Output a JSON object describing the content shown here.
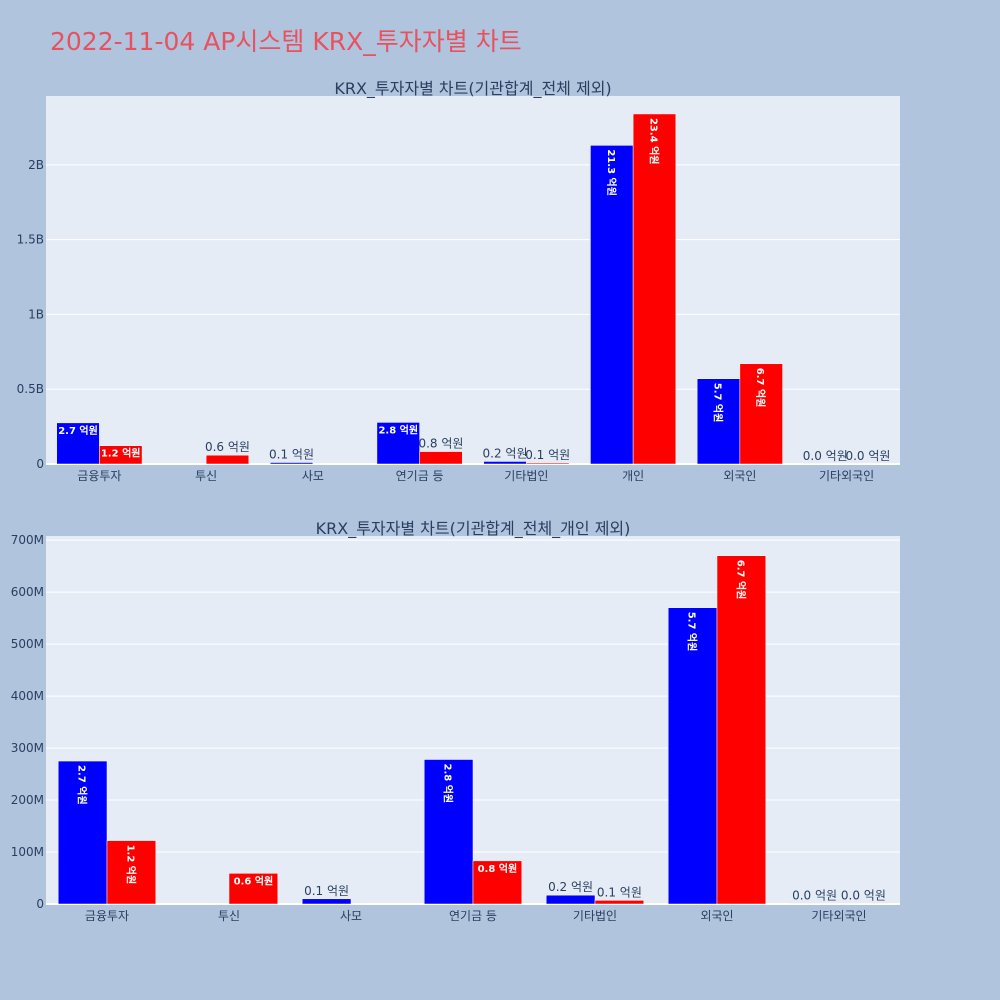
{
  "page_title": "2022-11-04 AP시스템 KRX_투자자별 차트",
  "colors": {
    "buy": "#0000ff",
    "sell": "#ff0000",
    "plot_bg": "#e5ecf6",
    "page_bg": "#b0c4de",
    "title": "#e8525f"
  },
  "chart_data": [
    {
      "type": "bar",
      "title": "KRX_투자자별 차트(기관합계_전체 제외)",
      "categories": [
        "금융투자",
        "투신",
        "사모",
        "연기금 등",
        "기타법인",
        "개인",
        "외국인",
        "기타외국인"
      ],
      "series": [
        {
          "name": "buy",
          "color": "#0000ff",
          "values": [
            275000000,
            0,
            10000000,
            278000000,
            17000000,
            2130000000,
            570000000,
            1000000
          ],
          "labels": [
            "2.7 억원",
            "",
            "0.1 억원",
            "2.8 억원",
            "0.2 억원",
            "21.3 억원",
            "5.7 억원",
            "0.0 억원"
          ]
        },
        {
          "name": "sell",
          "color": "#ff0000",
          "values": [
            122000000,
            59000000,
            0,
            83000000,
            7000000,
            2340000000,
            670000000,
            1000000
          ],
          "labels": [
            "1.2 억원",
            "0.6 억원",
            "",
            "0.8 억원",
            "0.1 억원",
            "23.4 억원",
            "6.7 억원",
            "0.0 억원"
          ]
        }
      ],
      "yticks": [
        0,
        500000000,
        1000000000,
        1500000000,
        2000000000
      ],
      "ytick_labels": [
        "0",
        "0.5B",
        "1B",
        "1.5B",
        "2B"
      ],
      "ylim": [
        0,
        2460000000
      ]
    },
    {
      "type": "bar",
      "title": "KRX_투자자별 차트(기관합계_전체_개인 제외)",
      "categories": [
        "금융투자",
        "투신",
        "사모",
        "연기금 등",
        "기타법인",
        "외국인",
        "기타외국인"
      ],
      "series": [
        {
          "name": "buy",
          "color": "#0000ff",
          "values": [
            275000000,
            0,
            10000000,
            278000000,
            17000000,
            570000000,
            1000000
          ],
          "labels": [
            "2.7 억원",
            "",
            "0.1 억원",
            "2.8 억원",
            "0.2 억원",
            "5.7 억원",
            "0.0 억원"
          ]
        },
        {
          "name": "sell",
          "color": "#ff0000",
          "values": [
            122000000,
            59000000,
            0,
            83000000,
            7000000,
            670000000,
            1000000
          ],
          "labels": [
            "1.2 억원",
            "0.6 억원",
            "",
            "0.8 억원",
            "0.1 억원",
            "6.7 억원",
            "0.0 억원"
          ]
        }
      ],
      "yticks": [
        0,
        100000000,
        200000000,
        300000000,
        400000000,
        500000000,
        600000000,
        700000000
      ],
      "ytick_labels": [
        "0",
        "100M",
        "200M",
        "300M",
        "400M",
        "500M",
        "600M",
        "700M"
      ],
      "ylim": [
        0,
        708000000
      ]
    }
  ]
}
